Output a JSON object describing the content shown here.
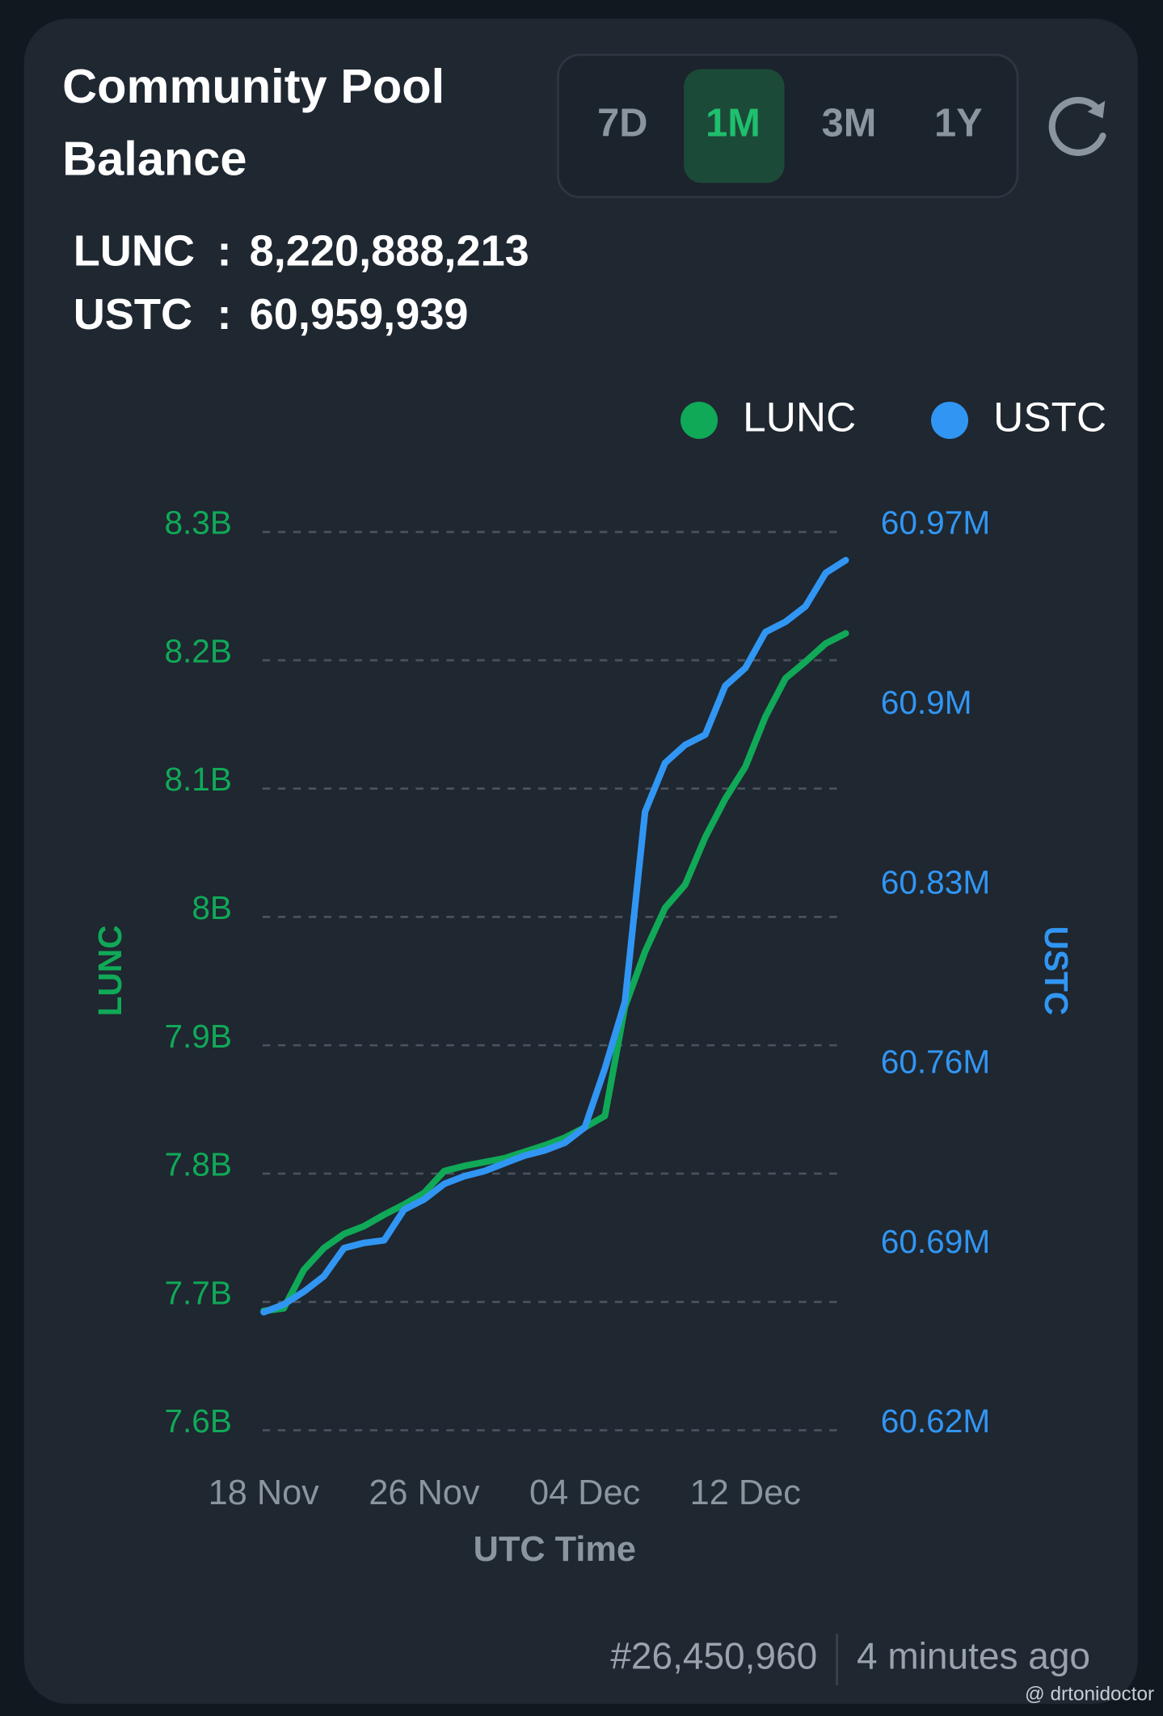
{
  "header": {
    "title": [
      "Community Pool",
      "Balance"
    ],
    "ranges": [
      "7D",
      "1M",
      "3M",
      "1Y"
    ],
    "active_range": 1
  },
  "balances": [
    {
      "label": "LUNC",
      "separator": ":",
      "value": "8,220,888,213"
    },
    {
      "label": "USTC",
      "separator": ":",
      "value": "60,959,939"
    }
  ],
  "chart_data": {
    "type": "line",
    "legend": "top-right",
    "grid": true,
    "xlabel": "UTC Time",
    "ylabel": "LUNC",
    "y2label": "USTC",
    "categories": [
      "18 Nov",
      null,
      null,
      null,
      null,
      null,
      null,
      null,
      "26 Nov",
      null,
      null,
      null,
      null,
      null,
      null,
      null,
      "04 Dec",
      null,
      null,
      null,
      null,
      null,
      null,
      null,
      "12 Dec",
      null,
      null,
      null,
      null,
      null
    ],
    "series": [
      {
        "name": "LUNC",
        "color": "#10a957",
        "values": [
          7693000000,
          7695000000,
          7725000000,
          7742000000,
          7753000000,
          7759000000,
          7768000000,
          7776000000,
          7785000000,
          7802000000,
          7806000000,
          7809000000,
          7812000000,
          7817000000,
          7822000000,
          7828000000,
          7836000000,
          7845000000,
          7930000000,
          7973000000,
          8007000000,
          8025000000,
          8062000000,
          8092000000,
          8117000000,
          8156000000,
          8186000000,
          8199000000,
          8213000000,
          8221000000
        ]
      },
      {
        "name": "USTC",
        "color": "#3196f3",
        "axis": "y2",
        "values": [
          60666000,
          60669000,
          60674000,
          60680000,
          60691000,
          60693000,
          60694000,
          60706000,
          60710000,
          60716000,
          60719000,
          60721000,
          60724000,
          60727000,
          60729000,
          60732000,
          60738000,
          60761000,
          60787000,
          60861000,
          60880000,
          60887000,
          60891000,
          60910000,
          60917000,
          60931000,
          60935000,
          60941000,
          60954000,
          60959000
        ]
      }
    ],
    "ylim": [
      7600000000,
      8300000000
    ],
    "yticks": [
      {
        "value": 7600000000,
        "label": "7.6B"
      },
      {
        "value": 7700000000,
        "label": "7.7B"
      },
      {
        "value": 7800000000,
        "label": "7.8B"
      },
      {
        "value": 7900000000,
        "label": "7.9B"
      },
      {
        "value": 8000000000,
        "label": "8B"
      },
      {
        "value": 8100000000,
        "label": "8.1B"
      },
      {
        "value": 8200000000,
        "label": "8.2B"
      },
      {
        "value": 8300000000,
        "label": "8.3B"
      }
    ],
    "y2lim": [
      60620000,
      60970000
    ],
    "y2ticks": [
      {
        "value": 60620000,
        "label": "60.62M"
      },
      {
        "value": 60690000,
        "label": "60.69M"
      },
      {
        "value": 60760000,
        "label": "60.76M"
      },
      {
        "value": 60830000,
        "label": "60.83M"
      },
      {
        "value": 60900000,
        "label": "60.9M"
      },
      {
        "value": 60970000,
        "label": "60.97M"
      }
    ]
  },
  "footer": {
    "block": "#26,450,960",
    "updated": "4 minutes ago"
  },
  "watermark": "@ drtonidoctor"
}
